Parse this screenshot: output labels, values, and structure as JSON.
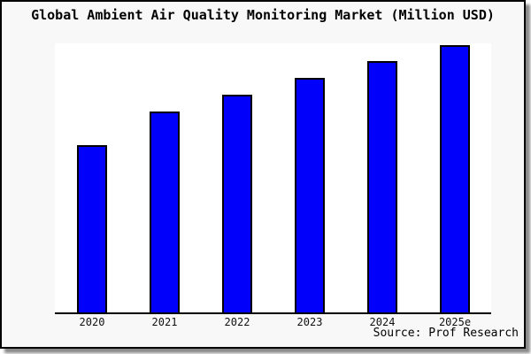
{
  "title": "Global Ambient Air Quality Monitoring Market (Million USD)",
  "source_credit": "Source: Prof Research",
  "chart_data": {
    "type": "bar",
    "title": "Global Ambient Air Quality Monitoring Market (Million USD)",
    "categories": [
      "2020",
      "2021",
      "2022",
      "2023",
      "2024",
      "2025e"
    ],
    "values": [
      100,
      120,
      130,
      140,
      150,
      160
    ],
    "value_note": "y-axis is unlabeled; values are relative units estimated from bar heights (2020 = 100)",
    "xlabel": "",
    "ylabel": "",
    "ylim": [
      0,
      161
    ],
    "grid": false,
    "legend": false,
    "bar_color": "#0000fb",
    "bar_border_color": "#000000",
    "axis_color": "#000000",
    "plot_background": "#ffffff",
    "canvas_background": "#f8f8f8",
    "annotations": [
      "Source: Prof Research"
    ]
  }
}
